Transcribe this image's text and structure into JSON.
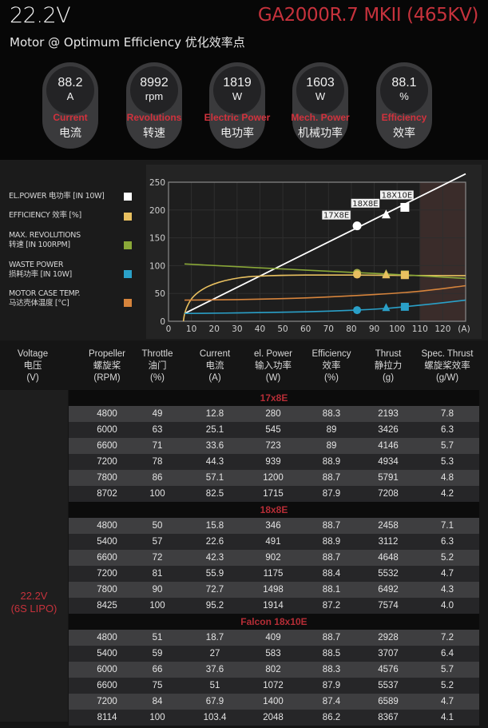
{
  "header": {
    "voltage": "22.2V",
    "model": "GA2000R.7 MKII (465KV)",
    "subtitle": "Motor @ Optimum Efficiency  优化效率点"
  },
  "gauges": [
    {
      "value": "88.2",
      "unit": "A",
      "label_en": "Current",
      "label_cn": "电流"
    },
    {
      "value": "8992",
      "unit": "rpm",
      "label_en": "Revolutions",
      "label_cn": "转速"
    },
    {
      "value": "1819",
      "unit": "W",
      "label_en": "Electric Power",
      "label_cn": "电功率"
    },
    {
      "value": "1603",
      "unit": "W",
      "label_en": "Mech. Power",
      "label_cn": "机械功率"
    },
    {
      "value": "88.1",
      "unit": "%",
      "label_en": "Efficiency",
      "label_cn": "效率"
    }
  ],
  "legend": [
    {
      "line1": "EL.POWER 电功率 [IN 10W]",
      "line2": "",
      "color": "#ffffff"
    },
    {
      "line1": "EFFICIENCY 效率 [%]",
      "line2": "",
      "color": "#e8c060"
    },
    {
      "line1": "MAX. REVOLUTIONS",
      "line2": "转速 [IN 100RPM]",
      "color": "#8aa838"
    },
    {
      "line1": "WASTE POWER",
      "line2": "损耗功率 [IN 10W]",
      "color": "#2aa0c8"
    },
    {
      "line1": "MOTOR CASE TEMP.",
      "line2": "马达壳体温度 [°C]",
      "color": "#d6843c"
    }
  ],
  "chart_data": {
    "type": "line",
    "title": "",
    "xlabel": "(A)",
    "ylabel": "",
    "xlim": [
      0,
      130
    ],
    "ylim": [
      0,
      250
    ],
    "x_ticks": [
      "0",
      "10",
      "20",
      "30",
      "40",
      "50",
      "60",
      "70",
      "80",
      "90",
      "100",
      "110",
      "120",
      "(A)"
    ],
    "y_ticks": [
      "0",
      "50",
      "100",
      "150",
      "200",
      "250"
    ],
    "grid": true,
    "shaded_region_x": [
      110,
      130
    ],
    "series": [
      {
        "name": "EL.POWER [IN 10W]",
        "color": "#ffffff",
        "x": [
          7,
          130
        ],
        "y": [
          14,
          265
        ]
      },
      {
        "name": "EFFICIENCY [%]",
        "color": "#e8c060",
        "x": [
          6.5,
          7,
          8,
          10,
          13,
          17,
          22,
          28,
          35,
          45,
          60,
          80,
          100,
          130
        ],
        "y": [
          0,
          12,
          25,
          40,
          52,
          62,
          70,
          76,
          80,
          82,
          83,
          83,
          82.5,
          82
        ]
      },
      {
        "name": "MAX. REVOLUTIONS [IN 100RPM]",
        "color": "#8aa838",
        "x": [
          7,
          40,
          80,
          100,
          130
        ],
        "y": [
          103,
          96,
          88,
          84,
          77
        ]
      },
      {
        "name": "WASTE POWER [IN 10W]",
        "color": "#2aa0c8",
        "x": [
          7,
          30,
          60,
          82,
          95,
          103,
          115,
          130
        ],
        "y": [
          14,
          15,
          17,
          20,
          23,
          26,
          31,
          38
        ]
      },
      {
        "name": "MOTOR CASE TEMP. [°C]",
        "color": "#d6843c",
        "x": [
          7,
          30,
          60,
          90,
          110,
          130
        ],
        "y": [
          38,
          39,
          42,
          48,
          54,
          64
        ]
      }
    ],
    "markers": [
      {
        "label": "17X8E",
        "shape": "circle",
        "x": 82.5,
        "el_power": 171.5,
        "efficiency": 84,
        "revolutions": 87,
        "waste_power": 20
      },
      {
        "label": "18X8E",
        "shape": "triangle",
        "x": 95.2,
        "el_power": 191.4,
        "efficiency": 83,
        "revolutions": 85,
        "waste_power": 24
      },
      {
        "label": "18X10E",
        "shape": "square",
        "x": 103.4,
        "el_power": 204.8,
        "efficiency": 83,
        "revolutions": 84,
        "waste_power": 26
      }
    ]
  },
  "table": {
    "headers": [
      {
        "en": "Voltage",
        "cn": "电压",
        "unit": "(V)"
      },
      {
        "en": "Propeller",
        "cn": "螺旋桨",
        "unit": "(RPM)"
      },
      {
        "en": "Throttle",
        "cn": "油门",
        "unit": "(%)"
      },
      {
        "en": "Current",
        "cn": "电流",
        "unit": "(A)"
      },
      {
        "en": "el. Power",
        "cn": "输入功率",
        "unit": "(W)"
      },
      {
        "en": "Efficiency",
        "cn": "效率",
        "unit": "(%)"
      },
      {
        "en": "Thrust",
        "cn": "静拉力",
        "unit": "(g)"
      },
      {
        "en": "Spec. Thrust",
        "cn": "螺旋桨效率",
        "unit": "(g/W)"
      }
    ],
    "voltage_label": "22.2V",
    "voltage_sub": "(6S LIPO)",
    "groups": [
      {
        "name": "17x8E",
        "rows": [
          [
            "4800",
            "49",
            "12.8",
            "280",
            "88.3",
            "2193",
            "7.8"
          ],
          [
            "6000",
            "63",
            "25.1",
            "545",
            "89",
            "3426",
            "6.3"
          ],
          [
            "6600",
            "71",
            "33.6",
            "723",
            "89",
            "4146",
            "5.7"
          ],
          [
            "7200",
            "78",
            "44.3",
            "939",
            "88.9",
            "4934",
            "5.3"
          ],
          [
            "7800",
            "86",
            "57.1",
            "1200",
            "88.7",
            "5791",
            "4.8"
          ],
          [
            "8702",
            "100",
            "82.5",
            "1715",
            "87.9",
            "7208",
            "4.2"
          ]
        ]
      },
      {
        "name": "18x8E",
        "rows": [
          [
            "4800",
            "50",
            "15.8",
            "346",
            "88.7",
            "2458",
            "7.1"
          ],
          [
            "5400",
            "57",
            "22.6",
            "491",
            "88.9",
            "3112",
            "6.3"
          ],
          [
            "6600",
            "72",
            "42.3",
            "902",
            "88.7",
            "4648",
            "5.2"
          ],
          [
            "7200",
            "81",
            "55.9",
            "1175",
            "88.4",
            "5532",
            "4.7"
          ],
          [
            "7800",
            "90",
            "72.7",
            "1498",
            "88.1",
            "6492",
            "4.3"
          ],
          [
            "8425",
            "100",
            "95.2",
            "1914",
            "87.2",
            "7574",
            "4.0"
          ]
        ]
      },
      {
        "name": "Falcon 18x10E",
        "rows": [
          [
            "4800",
            "51",
            "18.7",
            "409",
            "88.7",
            "2928",
            "7.2"
          ],
          [
            "5400",
            "59",
            "27",
            "583",
            "88.5",
            "3707",
            "6.4"
          ],
          [
            "6000",
            "66",
            "37.6",
            "802",
            "88.3",
            "4576",
            "5.7"
          ],
          [
            "6600",
            "75",
            "51",
            "1072",
            "87.9",
            "5537",
            "5.2"
          ],
          [
            "7200",
            "84",
            "67.9",
            "1400",
            "87.4",
            "6589",
            "4.7"
          ],
          [
            "8114",
            "100",
            "103.4",
            "2048",
            "86.2",
            "8367",
            "4.1"
          ]
        ]
      }
    ]
  }
}
